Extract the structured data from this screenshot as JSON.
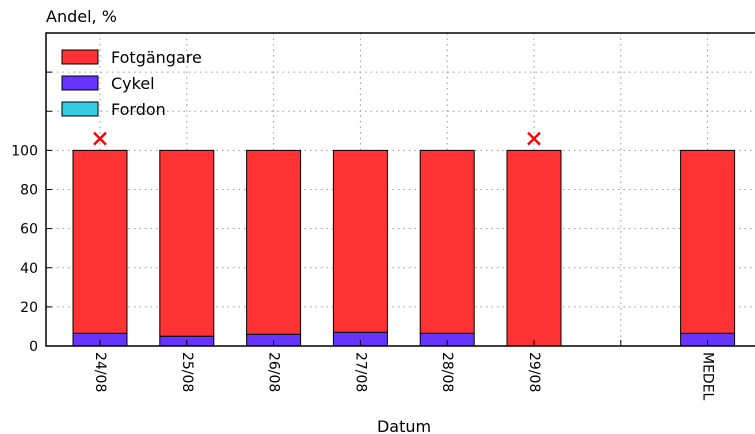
{
  "chart_data": {
    "type": "bar",
    "stacked": true,
    "title": "",
    "ylabel": "Andel, %",
    "xlabel": "Datum",
    "ylim": [
      0,
      160
    ],
    "yticks": [
      0,
      20,
      40,
      60,
      80,
      100
    ],
    "grid": true,
    "legend_position": "top-left",
    "slots": [
      "24/08",
      "25/08",
      "26/08",
      "27/08",
      "28/08",
      "29/08",
      "",
      "MEDEL"
    ],
    "categories": [
      "24/08",
      "25/08",
      "26/08",
      "27/08",
      "28/08",
      "29/08",
      "MEDEL"
    ],
    "series": [
      {
        "name": "Fordon",
        "color": "#33cce0",
        "values": [
          0,
          0,
          0,
          0,
          0,
          0,
          0
        ]
      },
      {
        "name": "Cykel",
        "color": "#6633ff",
        "values": [
          6.5,
          5,
          6,
          7,
          6.5,
          0,
          6.5
        ]
      },
      {
        "name": "Fotgängare",
        "color": "#ff3333",
        "values": [
          93.5,
          95,
          94,
          93,
          93.5,
          100,
          93.5
        ]
      }
    ],
    "legend_order": [
      "Fotgängare",
      "Cykel",
      "Fordon"
    ],
    "markers": [
      {
        "category": "24/08",
        "y": 106,
        "symbol": "x",
        "color": "#ff0000"
      },
      {
        "category": "29/08",
        "y": 106,
        "symbol": "x",
        "color": "#ff0000"
      }
    ]
  }
}
